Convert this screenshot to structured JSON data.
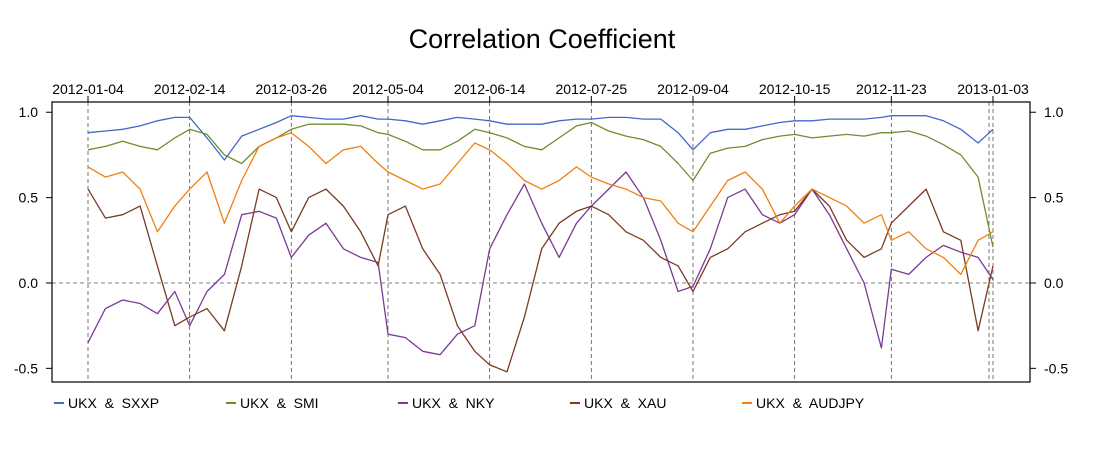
{
  "chart_data": {
    "type": "line",
    "title": "Correlation Coefficient",
    "xlabel": "",
    "ylabel": "",
    "x_tick_labels": [
      "2012-01-04",
      "2012-02-14",
      "2012-03-26",
      "2012-05-04",
      "2012-06-14",
      "2012-07-25",
      "2012-09-04",
      "2012-10-15",
      "2012-11-23",
      "2013-01-03"
    ],
    "y_ticks": [
      -0.5,
      0.0,
      0.5,
      1.0
    ],
    "y_tick_labels": [
      "-0.5",
      "0.0",
      "0.5",
      "1.0"
    ],
    "ylim": [
      -0.58,
      1.06
    ],
    "x": [
      "2012-01-04",
      "2012-01-11",
      "2012-01-18",
      "2012-01-25",
      "2012-02-01",
      "2012-02-08",
      "2012-02-14",
      "2012-02-21",
      "2012-02-28",
      "2012-03-06",
      "2012-03-13",
      "2012-03-20",
      "2012-03-26",
      "2012-04-02",
      "2012-04-09",
      "2012-04-16",
      "2012-04-23",
      "2012-04-30",
      "2012-05-04",
      "2012-05-11",
      "2012-05-18",
      "2012-05-25",
      "2012-06-01",
      "2012-06-08",
      "2012-06-14",
      "2012-06-21",
      "2012-06-28",
      "2012-07-05",
      "2012-07-12",
      "2012-07-19",
      "2012-07-25",
      "2012-08-01",
      "2012-08-08",
      "2012-08-15",
      "2012-08-22",
      "2012-08-29",
      "2012-09-04",
      "2012-09-11",
      "2012-09-18",
      "2012-09-25",
      "2012-10-02",
      "2012-10-09",
      "2012-10-15",
      "2012-10-22",
      "2012-10-29",
      "2012-11-05",
      "2012-11-12",
      "2012-11-19",
      "2012-11-23",
      "2012-11-30",
      "2012-12-07",
      "2012-12-14",
      "2012-12-21",
      "2012-12-28",
      "2013-01-03"
    ],
    "grid": "dashed vertical lines at x ticks; dashed horizontal line at 0.0",
    "legend_position": "bottom",
    "series": [
      {
        "name": "UKX  &  SXXP",
        "color": "#4169c8",
        "values": [
          0.88,
          0.89,
          0.9,
          0.92,
          0.95,
          0.97,
          0.97,
          0.85,
          0.72,
          0.86,
          0.9,
          0.94,
          0.98,
          0.97,
          0.96,
          0.96,
          0.98,
          0.96,
          0.96,
          0.95,
          0.93,
          0.95,
          0.97,
          0.96,
          0.95,
          0.93,
          0.93,
          0.93,
          0.95,
          0.96,
          0.96,
          0.97,
          0.97,
          0.96,
          0.96,
          0.88,
          0.78,
          0.88,
          0.9,
          0.9,
          0.92,
          0.94,
          0.95,
          0.95,
          0.96,
          0.96,
          0.96,
          0.97,
          0.98,
          0.98,
          0.98,
          0.95,
          0.9,
          0.82,
          0.9
        ]
      },
      {
        "name": "UKX  &  SMI",
        "color": "#6d8f2e",
        "values": [
          0.78,
          0.8,
          0.83,
          0.8,
          0.78,
          0.85,
          0.9,
          0.87,
          0.75,
          0.7,
          0.8,
          0.85,
          0.9,
          0.93,
          0.93,
          0.93,
          0.92,
          0.88,
          0.87,
          0.83,
          0.78,
          0.78,
          0.83,
          0.9,
          0.88,
          0.85,
          0.8,
          0.78,
          0.85,
          0.92,
          0.94,
          0.89,
          0.86,
          0.84,
          0.8,
          0.7,
          0.6,
          0.76,
          0.79,
          0.8,
          0.84,
          0.86,
          0.87,
          0.85,
          0.86,
          0.87,
          0.86,
          0.88,
          0.88,
          0.89,
          0.86,
          0.81,
          0.75,
          0.62,
          0.21
        ]
      },
      {
        "name": "UKX  &  NKY",
        "color": "#7b3a96",
        "values": [
          -0.35,
          -0.15,
          -0.1,
          -0.12,
          -0.18,
          -0.05,
          -0.25,
          -0.05,
          0.05,
          0.4,
          0.42,
          0.38,
          0.15,
          0.28,
          0.35,
          0.2,
          0.15,
          0.12,
          -0.3,
          -0.32,
          -0.4,
          -0.42,
          -0.3,
          -0.25,
          0.2,
          0.4,
          0.58,
          0.35,
          0.15,
          0.35,
          0.45,
          0.55,
          0.65,
          0.5,
          0.25,
          -0.05,
          -0.02,
          0.2,
          0.5,
          0.55,
          0.4,
          0.35,
          0.4,
          0.55,
          0.4,
          0.2,
          0.0,
          -0.38,
          0.08,
          0.05,
          0.15,
          0.22,
          0.18,
          0.15,
          0.02
        ]
      },
      {
        "name": "UKX  &  XAU",
        "color": "#7a3b22",
        "values": [
          0.55,
          0.38,
          0.4,
          0.45,
          0.1,
          -0.25,
          -0.2,
          -0.15,
          -0.28,
          0.1,
          0.55,
          0.5,
          0.3,
          0.5,
          0.55,
          0.45,
          0.3,
          0.1,
          0.4,
          0.45,
          0.2,
          0.05,
          -0.25,
          -0.4,
          -0.48,
          -0.52,
          -0.2,
          0.2,
          0.35,
          0.42,
          0.45,
          0.4,
          0.3,
          0.25,
          0.15,
          0.1,
          -0.05,
          0.15,
          0.2,
          0.3,
          0.35,
          0.4,
          0.42,
          0.55,
          0.45,
          0.25,
          0.15,
          0.2,
          0.35,
          0.45,
          0.55,
          0.3,
          0.25,
          -0.28,
          0.1
        ]
      },
      {
        "name": "UKX  &  AUDJPY",
        "color": "#f08010",
        "values": [
          0.68,
          0.62,
          0.65,
          0.55,
          0.3,
          0.45,
          0.55,
          0.65,
          0.35,
          0.6,
          0.8,
          0.85,
          0.88,
          0.8,
          0.7,
          0.78,
          0.8,
          0.7,
          0.65,
          0.6,
          0.55,
          0.58,
          0.7,
          0.82,
          0.78,
          0.7,
          0.6,
          0.55,
          0.6,
          0.68,
          0.62,
          0.58,
          0.55,
          0.5,
          0.48,
          0.35,
          0.3,
          0.45,
          0.6,
          0.65,
          0.55,
          0.35,
          0.45,
          0.55,
          0.5,
          0.45,
          0.35,
          0.4,
          0.25,
          0.3,
          0.2,
          0.15,
          0.05,
          0.25,
          0.3
        ]
      }
    ]
  }
}
